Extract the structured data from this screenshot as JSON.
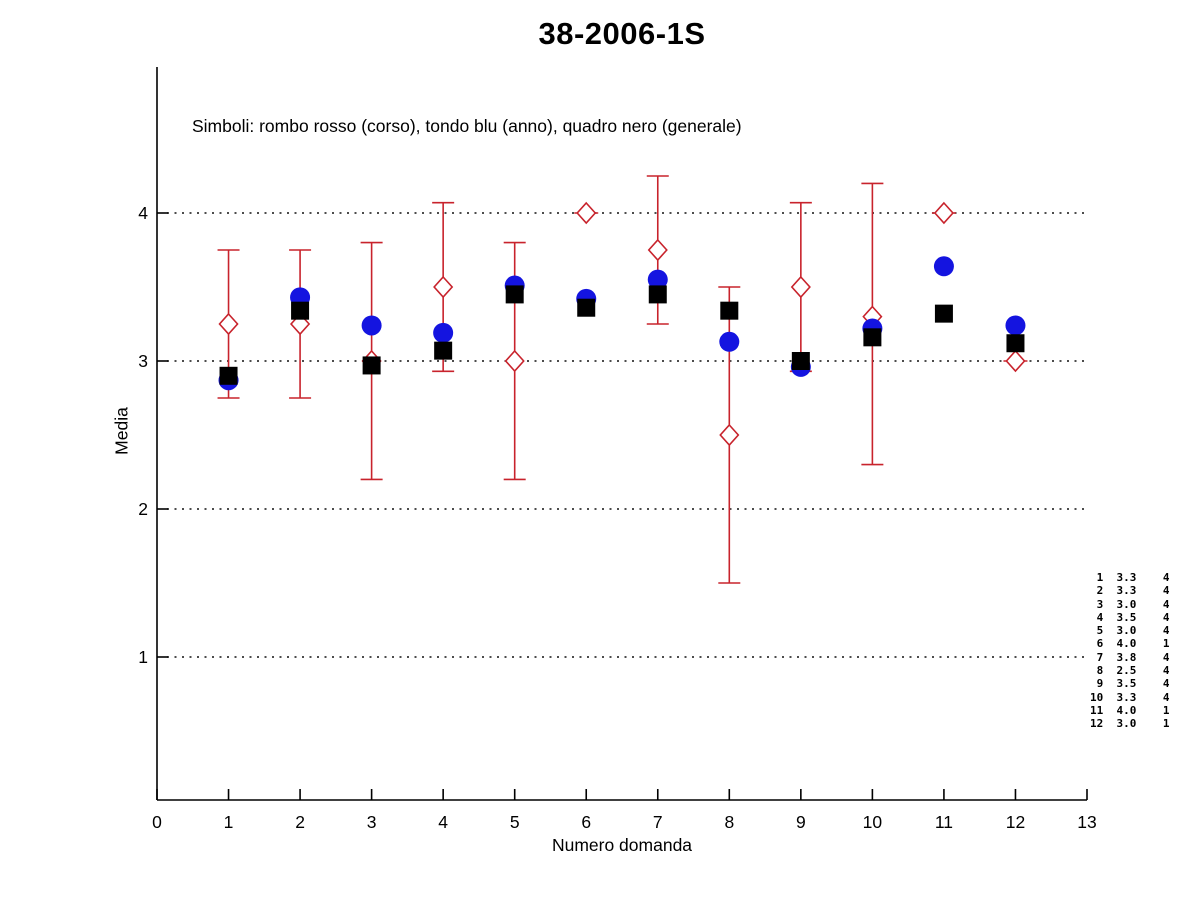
{
  "chart_data": {
    "type": "scatter",
    "title": "38-2006-1S",
    "subtitle": "Simboli: rombo rosso (corso), tondo blu (anno), quadro nero (generale)",
    "xlabel": "Numero domanda",
    "ylabel": "Media",
    "xlim": [
      0,
      13
    ],
    "ylim": [
      0,
      5
    ],
    "x_ticks": [
      0,
      1,
      2,
      3,
      4,
      5,
      6,
      7,
      8,
      9,
      10,
      11,
      12,
      13
    ],
    "y_ticks": [
      1,
      2,
      3,
      4
    ],
    "grid": "dotted horizontal lines at y = 1,2,3,4",
    "legend_position": "text line inside top of plot",
    "colors": {
      "corso": "#c8232c",
      "anno": "#1414e0",
      "generale": "#000000",
      "grid": "#111111",
      "axis": "#000000"
    },
    "x": [
      1,
      2,
      3,
      4,
      5,
      6,
      7,
      8,
      9,
      10,
      11,
      12
    ],
    "series": [
      {
        "name": "corso",
        "marker": "diamond-open-red",
        "values": [
          3.25,
          3.25,
          3.0,
          3.5,
          3.0,
          4.0,
          3.75,
          2.5,
          3.5,
          3.3,
          4.0,
          3.0
        ],
        "err_low": [
          2.75,
          2.75,
          2.2,
          2.93,
          2.2,
          4.0,
          3.25,
          1.5,
          2.93,
          2.3,
          4.0,
          3.0
        ],
        "err_high": [
          3.75,
          3.75,
          3.8,
          4.07,
          3.8,
          4.0,
          4.25,
          3.5,
          4.07,
          4.2,
          4.0,
          3.0
        ]
      },
      {
        "name": "anno",
        "marker": "circle-filled-blue",
        "values": [
          2.87,
          3.43,
          3.24,
          3.19,
          3.51,
          3.42,
          3.55,
          3.13,
          2.96,
          3.22,
          3.64,
          3.24
        ]
      },
      {
        "name": "generale",
        "marker": "square-filled-black",
        "values": [
          2.9,
          3.34,
          2.97,
          3.07,
          3.45,
          3.36,
          3.45,
          3.34,
          3.0,
          3.16,
          3.32,
          3.12
        ]
      }
    ],
    "side_table": {
      "rows": [
        [
          "1",
          "3.3",
          "4"
        ],
        [
          "2",
          "3.3",
          "4"
        ],
        [
          "3",
          "3.0",
          "4"
        ],
        [
          "4",
          "3.5",
          "4"
        ],
        [
          "5",
          "3.0",
          "4"
        ],
        [
          "6",
          "4.0",
          "1"
        ],
        [
          "7",
          "3.8",
          "4"
        ],
        [
          "8",
          "2.5",
          "4"
        ],
        [
          "9",
          "3.5",
          "4"
        ],
        [
          "10",
          "3.3",
          "4"
        ],
        [
          "11",
          "4.0",
          "1"
        ],
        [
          "12",
          "3.0",
          "1"
        ]
      ]
    }
  }
}
